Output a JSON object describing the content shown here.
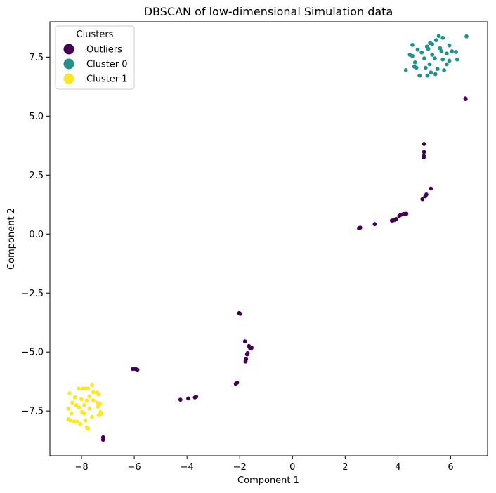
{
  "chart_data": {
    "type": "scatter",
    "title": "DBSCAN of low-dimensional Simulation data",
    "xlabel": "Component 1",
    "ylabel": "Component 2",
    "xlim": [
      -9.2,
      7.4
    ],
    "ylim": [
      -9.4,
      9.0
    ],
    "x_ticks": [
      -8,
      -6,
      -4,
      -2,
      0,
      2,
      4,
      6
    ],
    "y_ticks": [
      -7.5,
      -5.0,
      -2.5,
      0.0,
      2.5,
      5.0,
      7.5
    ],
    "x_tick_labels": [
      "−8",
      "−6",
      "−4",
      "−2",
      "0",
      "2",
      "4",
      "6"
    ],
    "y_tick_labels": [
      "−7.5",
      "−5.0",
      "−2.5",
      "0.0",
      "2.5",
      "5.0",
      "7.5"
    ],
    "grid": false,
    "legend": {
      "title": "Clusters",
      "placement": "top-left"
    },
    "series": [
      {
        "name": "Outliers",
        "color": "#440154",
        "points": [
          [
            6.57,
            5.72
          ],
          [
            6.56,
            5.75
          ],
          [
            4.99,
            3.82
          ],
          [
            4.99,
            3.48
          ],
          [
            4.98,
            3.33
          ],
          [
            4.98,
            3.25
          ],
          [
            5.25,
            1.93
          ],
          [
            5.08,
            1.68
          ],
          [
            5.04,
            1.6
          ],
          [
            4.93,
            1.48
          ],
          [
            4.32,
            0.86
          ],
          [
            4.22,
            0.85
          ],
          [
            4.1,
            0.81
          ],
          [
            4.05,
            0.77
          ],
          [
            3.93,
            0.64
          ],
          [
            3.88,
            0.6
          ],
          [
            3.82,
            0.58
          ],
          [
            3.77,
            0.57
          ],
          [
            3.12,
            0.42
          ],
          [
            2.57,
            0.27
          ],
          [
            2.52,
            0.25
          ],
          [
            -2.02,
            -3.35
          ],
          [
            -1.98,
            -3.38
          ],
          [
            -1.8,
            -4.55
          ],
          [
            -1.65,
            -4.75
          ],
          [
            -1.6,
            -4.85
          ],
          [
            -1.55,
            -4.82
          ],
          [
            -1.7,
            -5.05
          ],
          [
            -1.72,
            -5.1
          ],
          [
            -1.76,
            -5.3
          ],
          [
            -1.78,
            -5.4
          ],
          [
            -2.1,
            -6.3
          ],
          [
            -2.15,
            -6.35
          ],
          [
            -3.65,
            -6.9
          ],
          [
            -3.7,
            -6.93
          ],
          [
            -3.95,
            -6.97
          ],
          [
            -4.25,
            -7.02
          ],
          [
            -5.95,
            -5.72
          ],
          [
            -5.88,
            -5.75
          ],
          [
            -6.05,
            -5.72
          ],
          [
            -7.18,
            -8.62
          ],
          [
            -7.18,
            -8.72
          ]
        ]
      },
      {
        "name": "Cluster 0",
        "color": "#21918c",
        "points": [
          [
            6.6,
            8.38
          ],
          [
            5.55,
            8.4
          ],
          [
            5.7,
            8.32
          ],
          [
            5.45,
            8.22
          ],
          [
            5.22,
            8.1
          ],
          [
            4.55,
            8.02
          ],
          [
            5.95,
            8.0
          ],
          [
            5.1,
            7.95
          ],
          [
            5.6,
            7.88
          ],
          [
            4.75,
            7.82
          ],
          [
            5.15,
            7.85
          ],
          [
            5.65,
            7.75
          ],
          [
            6.05,
            7.75
          ],
          [
            6.2,
            7.72
          ],
          [
            5.85,
            7.65
          ],
          [
            4.45,
            7.6
          ],
          [
            5.3,
            7.6
          ],
          [
            5.0,
            7.45
          ],
          [
            5.4,
            7.45
          ],
          [
            5.7,
            7.4
          ],
          [
            6.25,
            7.4
          ],
          [
            4.65,
            7.28
          ],
          [
            5.2,
            7.2
          ],
          [
            5.95,
            7.35
          ],
          [
            4.7,
            7.05
          ],
          [
            4.62,
            7.1
          ],
          [
            5.05,
            7.05
          ],
          [
            4.3,
            6.95
          ],
          [
            5.5,
            7.0
          ],
          [
            5.75,
            6.95
          ],
          [
            5.25,
            6.85
          ],
          [
            5.42,
            6.78
          ],
          [
            4.82,
            6.72
          ],
          [
            5.12,
            6.72
          ],
          [
            4.55,
            7.55
          ],
          [
            5.85,
            7.2
          ],
          [
            5.3,
            8.05
          ],
          [
            4.9,
            7.7
          ]
        ]
      },
      {
        "name": "Cluster 1",
        "color": "#fde725",
        "points": [
          [
            -7.6,
            -6.4
          ],
          [
            -7.75,
            -6.55
          ],
          [
            -7.85,
            -6.55
          ],
          [
            -7.95,
            -6.55
          ],
          [
            -8.1,
            -6.55
          ],
          [
            -7.55,
            -6.7
          ],
          [
            -7.4,
            -6.72
          ],
          [
            -8.45,
            -6.75
          ],
          [
            -7.35,
            -6.8
          ],
          [
            -8.25,
            -6.92
          ],
          [
            -7.7,
            -6.88
          ],
          [
            -8.0,
            -7.0
          ],
          [
            -7.4,
            -7.15
          ],
          [
            -7.8,
            -7.05
          ],
          [
            -8.35,
            -7.15
          ],
          [
            -7.3,
            -7.2
          ],
          [
            -7.9,
            -7.25
          ],
          [
            -8.1,
            -7.35
          ],
          [
            -7.38,
            -7.32
          ],
          [
            -8.5,
            -7.4
          ],
          [
            -7.7,
            -7.4
          ],
          [
            -7.28,
            -7.55
          ],
          [
            -7.25,
            -7.62
          ],
          [
            -7.35,
            -7.68
          ],
          [
            -8.38,
            -7.6
          ],
          [
            -7.9,
            -7.6
          ],
          [
            -7.6,
            -7.75
          ],
          [
            -8.5,
            -7.85
          ],
          [
            -8.42,
            -7.9
          ],
          [
            -8.28,
            -7.95
          ],
          [
            -8.18,
            -7.95
          ],
          [
            -8.05,
            -8.05
          ],
          [
            -7.85,
            -7.9
          ],
          [
            -7.8,
            -8.2
          ],
          [
            -7.75,
            -8.25
          ],
          [
            -7.98,
            -7.55
          ],
          [
            -8.2,
            -7.25
          ],
          [
            -7.55,
            -7.05
          ]
        ]
      }
    ]
  }
}
